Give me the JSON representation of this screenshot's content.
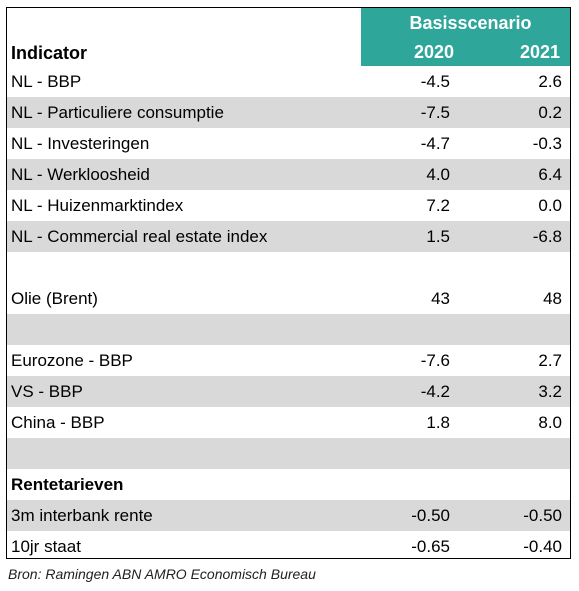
{
  "table": {
    "indicator_header": "Indicator",
    "scenario_header": "Basisscenario",
    "year_2020": "2020",
    "year_2021": "2021",
    "rows": [
      {
        "label": "NL - BBP",
        "v2020": "-4.5",
        "v2021": "2.6"
      },
      {
        "label": "NL - Particuliere consumptie",
        "v2020": "-7.5",
        "v2021": "0.2"
      },
      {
        "label": "NL - Investeringen",
        "v2020": "-4.7",
        "v2021": "-0.3"
      },
      {
        "label": "NL - Werkloosheid",
        "v2020": "4.0",
        "v2021": "6.4"
      },
      {
        "label": "NL - Huizenmarktindex",
        "v2020": "7.2",
        "v2021": "0.0"
      },
      {
        "label": "NL - Commercial real estate index",
        "v2020": "1.5",
        "v2021": "-6.8"
      },
      {
        "label": "",
        "v2020": "",
        "v2021": ""
      },
      {
        "label": "Olie (Brent)",
        "v2020": "43",
        "v2021": "48"
      },
      {
        "label": "",
        "v2020": "",
        "v2021": ""
      },
      {
        "label": "Eurozone - BBP",
        "v2020": "-7.6",
        "v2021": "2.7"
      },
      {
        "label": "VS - BBP",
        "v2020": "-4.2",
        "v2021": "3.2"
      },
      {
        "label": "China - BBP",
        "v2020": "1.8",
        "v2021": "8.0"
      },
      {
        "label": "",
        "v2020": "",
        "v2021": ""
      },
      {
        "label": "Rentetarieven",
        "v2020": "",
        "v2021": ""
      },
      {
        "label": "3m interbank rente",
        "v2020": "-0.50",
        "v2021": "-0.50"
      },
      {
        "label": "10jr staat",
        "v2020": "-0.65",
        "v2021": "-0.40"
      }
    ]
  },
  "source": "Bron: Ramingen ABN AMRO Economisch Bureau",
  "colors": {
    "header_teal": "#2ea69a",
    "row_shade": "#d9d9d9"
  }
}
